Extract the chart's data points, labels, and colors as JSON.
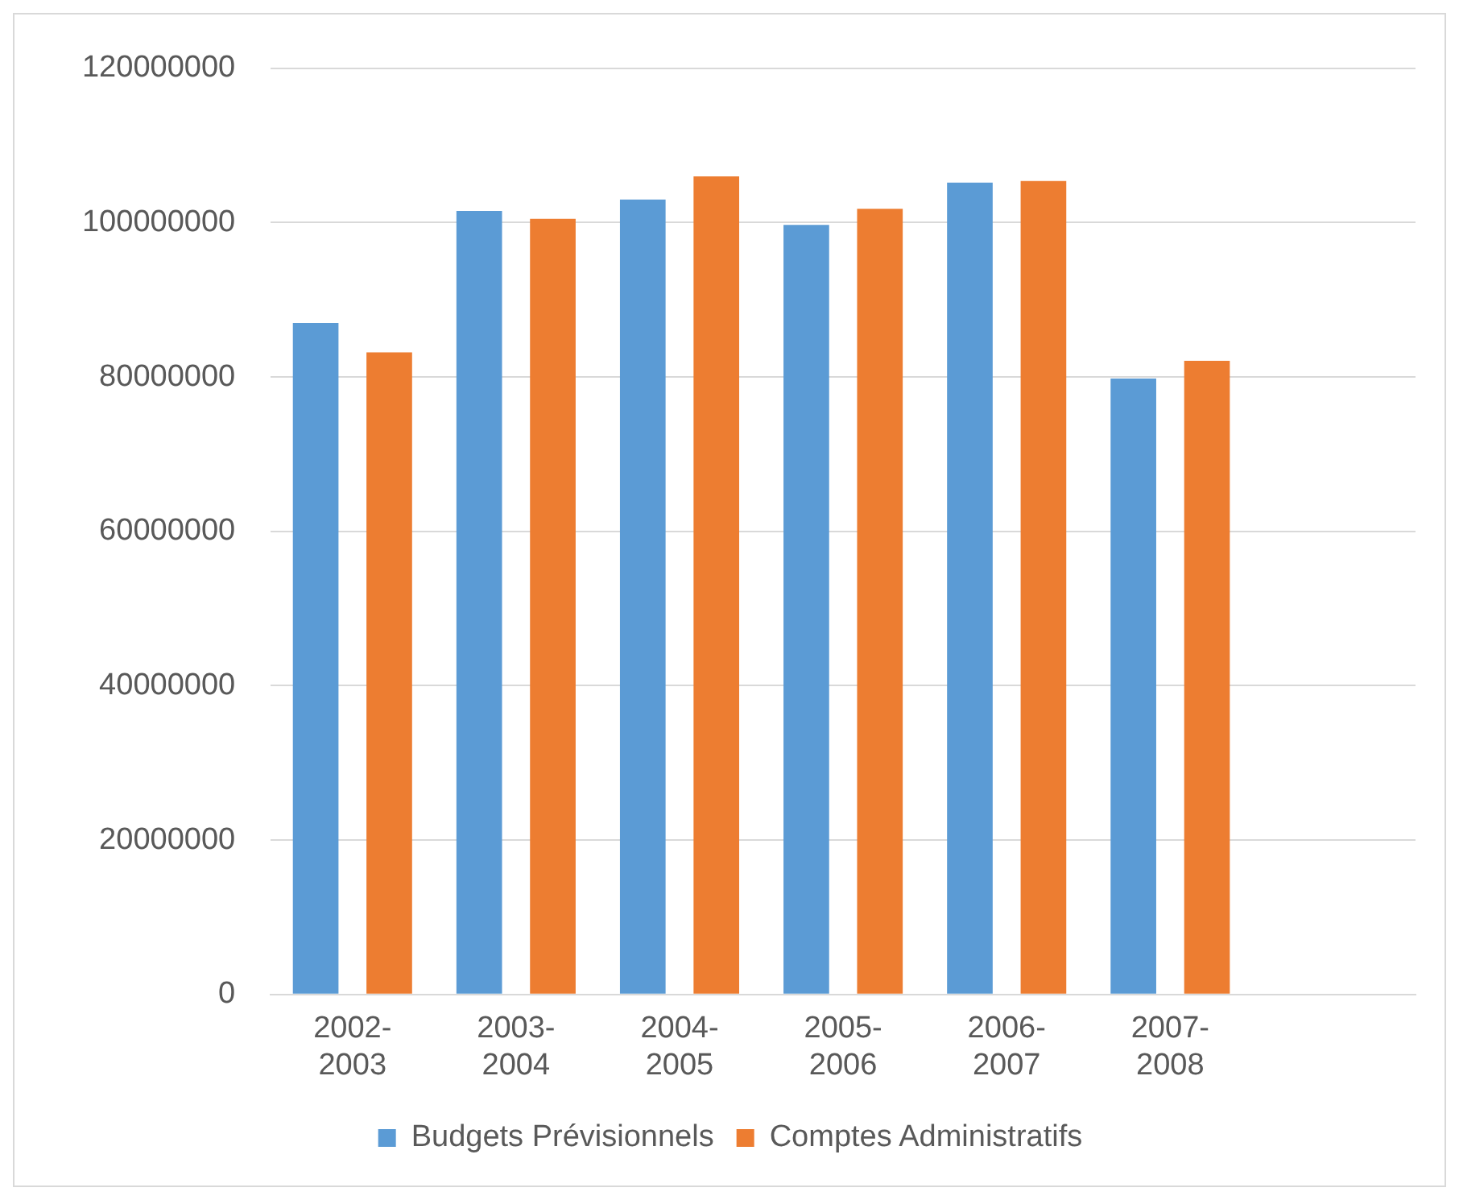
{
  "chart_data": {
    "type": "bar",
    "categories": [
      "2002-2003",
      "2003-2004",
      "2004-2005",
      "2005-2006",
      "2006-2007",
      "2007-2008",
      null
    ],
    "series": [
      {
        "name": "Budgets Prévisionnels",
        "color": "#5b9bd5",
        "values": [
          87000000,
          101500000,
          103000000,
          99700000,
          105200000,
          79800000,
          null
        ]
      },
      {
        "name": "Comptes Administratifs",
        "color": "#ed7d31",
        "values": [
          83200000,
          100500000,
          106000000,
          101800000,
          105400000,
          82100000,
          null
        ]
      }
    ],
    "ylim": [
      0,
      120000000
    ],
    "yticks": [
      0,
      20000000,
      40000000,
      60000000,
      80000000,
      100000000,
      120000000
    ],
    "grid": "y",
    "legend": "bottom"
  }
}
